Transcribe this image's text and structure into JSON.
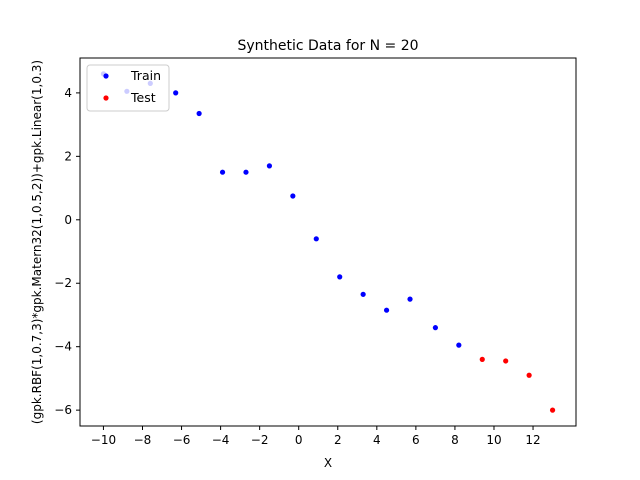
{
  "chart_data": {
    "type": "scatter",
    "title": "Synthetic Data for N = 20",
    "xlabel": "X",
    "ylabel": "(gpk.RBF(1,0.7,3)*gpk.Matern32(1,0.5,2))+gpk.Linear(1,0.3)",
    "xlim": [
      -11.2,
      14.2
    ],
    "ylim": [
      -6.5,
      5.1
    ],
    "xticks": [
      -10,
      -8,
      -6,
      -4,
      -2,
      0,
      2,
      4,
      6,
      8,
      10,
      12
    ],
    "yticks": [
      -6,
      -4,
      -2,
      0,
      2,
      4
    ],
    "legend_position": "top-left",
    "series": [
      {
        "name": "Train",
        "color": "#0000ff",
        "x": [
          -10.0,
          -8.8,
          -7.6,
          -6.3,
          -5.1,
          -3.9,
          -2.7,
          -1.5,
          -0.3,
          0.9,
          2.1,
          3.3,
          4.5,
          5.7,
          7.0,
          8.2
        ],
        "y": [
          4.6,
          4.05,
          4.3,
          4.0,
          3.35,
          1.5,
          1.5,
          1.7,
          0.75,
          -0.6,
          -1.8,
          -2.35,
          -2.85,
          -2.5,
          -3.4,
          -3.95
        ]
      },
      {
        "name": "Test",
        "color": "#ff0000",
        "x": [
          9.4,
          10.6,
          11.8,
          13.0
        ],
        "y": [
          -4.4,
          -4.45,
          -4.9,
          -6.0
        ]
      }
    ]
  }
}
